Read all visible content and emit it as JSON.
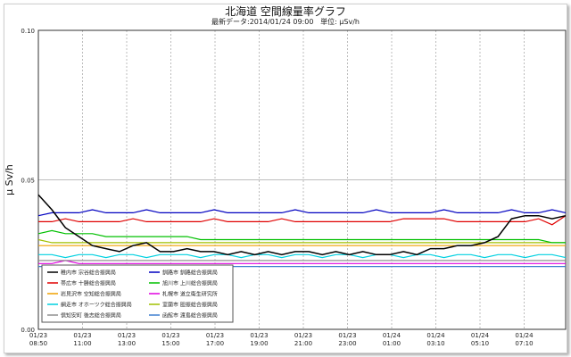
{
  "chart_data": {
    "type": "line",
    "title": "北海道 空間線量率グラフ",
    "subtitle_parts": [
      "最新データ",
      ":2014/01/24 09:00",
      "単位: μSv/h"
    ],
    "ylabel": "μ Sv/h",
    "ylim": [
      0,
      0.1
    ],
    "y_ticks": [
      "0.00",
      "0.05",
      "0.10"
    ],
    "x_ticks": [
      {
        "date": "01/23",
        "time": "08:50"
      },
      {
        "date": "01/23",
        "time": "11:00"
      },
      {
        "date": "01/23",
        "time": "13:00"
      },
      {
        "date": "01/23",
        "time": "15:00"
      },
      {
        "date": "01/23",
        "time": "17:00"
      },
      {
        "date": "01/23",
        "time": "19:00"
      },
      {
        "date": "01/23",
        "time": "21:00"
      },
      {
        "date": "01/23",
        "time": "23:00"
      },
      {
        "date": "01/24",
        "time": "01:00"
      },
      {
        "date": "01/24",
        "time": "03:10"
      },
      {
        "date": "01/24",
        "time": "05:10"
      },
      {
        "date": "01/24",
        "time": "07:10"
      }
    ],
    "grid": true,
    "legend_position": "bottom-left",
    "series": [
      {
        "name": "稚内市 宗谷総合振興局",
        "color": "#000000",
        "values": [
          0.045,
          0.04,
          0.034,
          0.031,
          0.028,
          0.027,
          0.026,
          0.028,
          0.029,
          0.026,
          0.026,
          0.027,
          0.026,
          0.026,
          0.025,
          0.026,
          0.025,
          0.026,
          0.025,
          0.026,
          0.026,
          0.025,
          0.026,
          0.025,
          0.026,
          0.025,
          0.025,
          0.026,
          0.025,
          0.027,
          0.027,
          0.028,
          0.028,
          0.029,
          0.031,
          0.037,
          0.038,
          0.038,
          0.037,
          0.038
        ]
      },
      {
        "name": "帯広市 十勝総合振興局",
        "color": "#e00000",
        "values": [
          0.036,
          0.036,
          0.037,
          0.036,
          0.036,
          0.036,
          0.036,
          0.037,
          0.036,
          0.036,
          0.036,
          0.036,
          0.036,
          0.037,
          0.036,
          0.036,
          0.036,
          0.036,
          0.037,
          0.036,
          0.036,
          0.036,
          0.036,
          0.036,
          0.036,
          0.036,
          0.036,
          0.037,
          0.037,
          0.037,
          0.037,
          0.036,
          0.036,
          0.036,
          0.036,
          0.036,
          0.036,
          0.037,
          0.035,
          0.038
        ]
      },
      {
        "name": "岩見沢市 空知総合振興局",
        "color": "#f0a000",
        "values": [
          0.028,
          0.028,
          0.028,
          0.028,
          0.028,
          0.028,
          0.028,
          0.028,
          0.028,
          0.028,
          0.028,
          0.028,
          0.028,
          0.028,
          0.028,
          0.028,
          0.028,
          0.028,
          0.028,
          0.028,
          0.028,
          0.028,
          0.028,
          0.028,
          0.028,
          0.028,
          0.028,
          0.028,
          0.028,
          0.028,
          0.028,
          0.028,
          0.028,
          0.028,
          0.028,
          0.028,
          0.028,
          0.028,
          0.028,
          0.028
        ]
      },
      {
        "name": "網走市 オホーツク総合振興局",
        "color": "#00d0e0",
        "values": [
          0.025,
          0.025,
          0.024,
          0.025,
          0.025,
          0.024,
          0.025,
          0.025,
          0.024,
          0.025,
          0.025,
          0.025,
          0.024,
          0.025,
          0.025,
          0.024,
          0.025,
          0.025,
          0.024,
          0.025,
          0.025,
          0.024,
          0.025,
          0.025,
          0.024,
          0.025,
          0.025,
          0.024,
          0.025,
          0.025,
          0.024,
          0.025,
          0.025,
          0.024,
          0.025,
          0.025,
          0.024,
          0.025,
          0.025,
          0.024
        ]
      },
      {
        "name": "倶知安町 後志総合振興局",
        "color": "#909090",
        "values": [
          0.023,
          0.023,
          0.023,
          0.023,
          0.023,
          0.023,
          0.023,
          0.023,
          0.023,
          0.023,
          0.023,
          0.023,
          0.023,
          0.023,
          0.023,
          0.023,
          0.023,
          0.023,
          0.023,
          0.023,
          0.023,
          0.023,
          0.023,
          0.023,
          0.023,
          0.023,
          0.023,
          0.023,
          0.023,
          0.023,
          0.023,
          0.023,
          0.023,
          0.023,
          0.023,
          0.023,
          0.023,
          0.023,
          0.023,
          0.023
        ]
      },
      {
        "name": "釧路市 釧路総合振興局",
        "color": "#0000c0",
        "values": [
          0.038,
          0.039,
          0.039,
          0.039,
          0.04,
          0.039,
          0.039,
          0.039,
          0.04,
          0.039,
          0.039,
          0.039,
          0.039,
          0.04,
          0.039,
          0.039,
          0.039,
          0.039,
          0.039,
          0.04,
          0.039,
          0.039,
          0.039,
          0.039,
          0.039,
          0.04,
          0.039,
          0.039,
          0.039,
          0.039,
          0.04,
          0.039,
          0.039,
          0.039,
          0.039,
          0.04,
          0.039,
          0.039,
          0.04,
          0.039
        ]
      },
      {
        "name": "旭川市 上川総合振興局",
        "color": "#00c000",
        "values": [
          0.032,
          0.033,
          0.032,
          0.032,
          0.032,
          0.031,
          0.031,
          0.031,
          0.031,
          0.031,
          0.031,
          0.031,
          0.03,
          0.03,
          0.03,
          0.03,
          0.03,
          0.03,
          0.03,
          0.03,
          0.03,
          0.03,
          0.03,
          0.03,
          0.03,
          0.03,
          0.03,
          0.03,
          0.03,
          0.03,
          0.03,
          0.03,
          0.03,
          0.03,
          0.03,
          0.03,
          0.03,
          0.03,
          0.029,
          0.029
        ]
      },
      {
        "name": "札幌市 道立衛生研究所",
        "color": "#e000e0",
        "values": [
          0.022,
          0.022,
          0.023,
          0.022,
          0.022,
          0.022,
          0.022,
          0.022,
          0.022,
          0.022,
          0.022,
          0.022,
          0.022,
          0.022,
          0.022,
          0.022,
          0.022,
          0.022,
          0.022,
          0.022,
          0.022,
          0.022,
          0.022,
          0.022,
          0.022,
          0.022,
          0.022,
          0.022,
          0.022,
          0.022,
          0.022,
          0.022,
          0.022,
          0.022,
          0.022,
          0.022,
          0.022,
          0.022,
          0.022,
          0.022
        ]
      },
      {
        "name": "室蘭市 胆振総合振興局",
        "color": "#a0c000",
        "values": [
          0.03,
          0.029,
          0.029,
          0.029,
          0.029,
          0.029,
          0.029,
          0.029,
          0.029,
          0.029,
          0.029,
          0.029,
          0.029,
          0.029,
          0.029,
          0.029,
          0.029,
          0.029,
          0.029,
          0.029,
          0.029,
          0.029,
          0.029,
          0.029,
          0.029,
          0.029,
          0.029,
          0.029,
          0.029,
          0.029,
          0.029,
          0.029,
          0.029,
          0.029,
          0.029,
          0.029,
          0.029,
          0.029,
          0.029,
          0.029
        ]
      },
      {
        "name": "函館市 渡島総合振興局",
        "color": "#4080d0",
        "values": [
          0.021,
          0.021,
          0.021,
          0.021,
          0.021,
          0.021,
          0.021,
          0.021,
          0.021,
          0.021,
          0.021,
          0.021,
          0.021,
          0.021,
          0.021,
          0.021,
          0.021,
          0.021,
          0.021,
          0.021,
          0.021,
          0.021,
          0.021,
          0.021,
          0.021,
          0.021,
          0.021,
          0.021,
          0.021,
          0.021,
          0.021,
          0.021,
          0.021,
          0.021,
          0.021,
          0.021,
          0.021,
          0.021,
          0.021,
          0.021
        ]
      }
    ]
  }
}
